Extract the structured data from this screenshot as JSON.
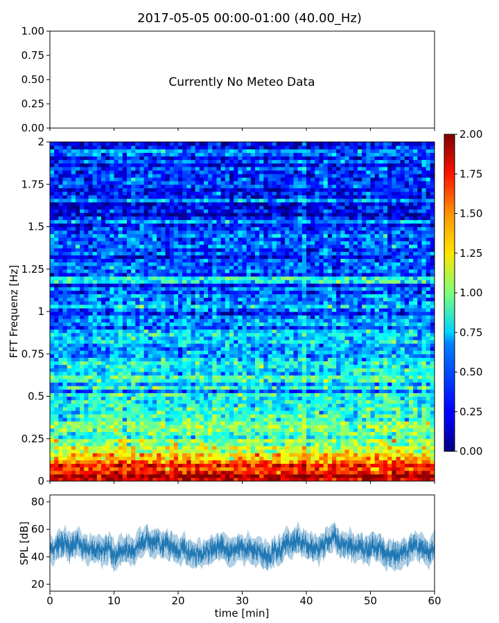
{
  "title": "2017-05-05 00:00-01:00 (40.00_Hz)",
  "meteo_panel": {
    "message": "Currently No Meteo Data",
    "y_ticks": [
      "0.00",
      "0.25",
      "0.50",
      "0.75",
      "1.00"
    ]
  },
  "chart_data": [
    {
      "type": "heatmap",
      "ylabel": "FFT Frequenz [Hz]",
      "xlim": [
        0,
        60
      ],
      "ylim": [
        0,
        2
      ],
      "y_ticks": [
        "0",
        "0.25",
        "0.5",
        "0.75",
        "1",
        "1.25",
        "1.5",
        "1.75",
        "2"
      ],
      "colormap": "jet",
      "colorbar": {
        "range": [
          0,
          2
        ],
        "ticks": [
          "0.00",
          "0.25",
          "0.50",
          "0.75",
          "1.00",
          "1.25",
          "1.50",
          "1.75",
          "2.00"
        ]
      },
      "frequency_profile": {
        "freq_hz": [
          0.0,
          0.1,
          0.2,
          0.3,
          0.5,
          0.75,
          1.0,
          1.25,
          1.5,
          1.75,
          2.0
        ],
        "typical_value": [
          1.9,
          1.6,
          1.1,
          0.95,
          0.75,
          0.6,
          0.5,
          0.45,
          0.38,
          0.33,
          0.3
        ]
      }
    },
    {
      "type": "line",
      "ylabel": "SPL [dB]",
      "xlabel": "time [min]",
      "xlim": [
        0,
        60
      ],
      "ylim": [
        15,
        85
      ],
      "x_ticks": [
        "0",
        "10",
        "20",
        "30",
        "40",
        "50",
        "60"
      ],
      "y_ticks": [
        "20",
        "40",
        "60",
        "80"
      ],
      "color": "#1f77b4",
      "series": [
        {
          "x": [
            0,
            2,
            4,
            6,
            8,
            10,
            12,
            14,
            16,
            18,
            20,
            22,
            24,
            26,
            28,
            30,
            32,
            34,
            36,
            38,
            40,
            42,
            44,
            46,
            48,
            50,
            52,
            54,
            56,
            58,
            60
          ],
          "values": [
            47,
            49,
            50,
            46,
            45,
            44,
            45,
            48,
            50,
            47,
            44,
            43,
            45,
            46,
            44,
            45,
            44,
            42,
            46,
            52,
            48,
            47,
            50,
            48,
            45,
            46,
            44,
            43,
            45,
            47,
            46
          ]
        }
      ]
    }
  ]
}
